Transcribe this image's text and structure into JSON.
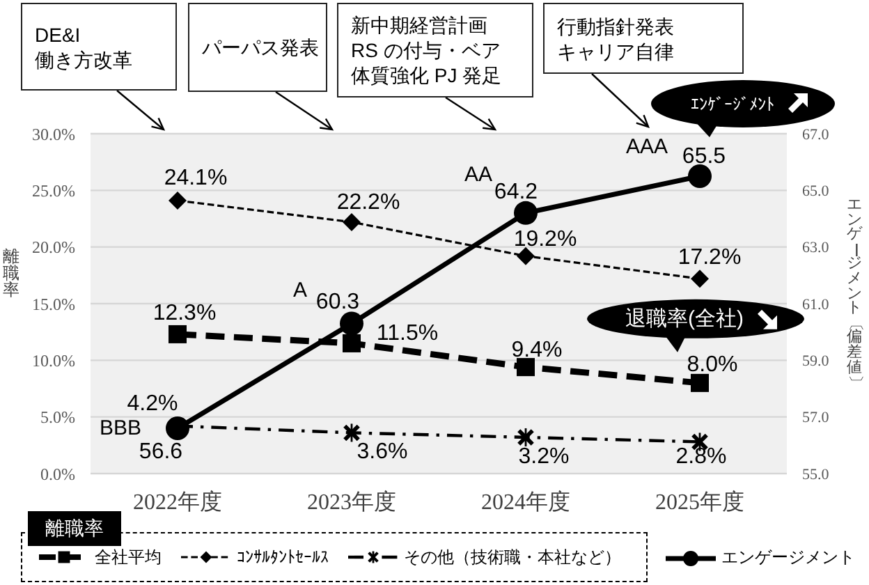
{
  "chart_data": {
    "type": "line",
    "categories": [
      "2022年度",
      "2023年度",
      "2024年度",
      "2025年度"
    ],
    "series": [
      {
        "name": "全社平均",
        "color": "#000000",
        "values": [
          12.3,
          11.5,
          9.4,
          8.0
        ],
        "marker": "square",
        "line_style": "dashed",
        "value_labels": [
          "12.3%",
          "11.5%",
          "9.4%",
          "8.0%"
        ]
      },
      {
        "name": "ｺﾝｻﾙﾀﾝﾄｾｰﾙｽ",
        "color": "#000000",
        "values": [
          24.1,
          22.2,
          19.2,
          17.2
        ],
        "marker": "diamond",
        "line_style": "dashed",
        "value_labels": [
          "24.1%",
          "22.2%",
          "19.2%",
          "17.2%"
        ]
      },
      {
        "name": "その他（技術職・本社など）",
        "color": "#000000",
        "values": [
          4.2,
          3.6,
          3.2,
          2.8
        ],
        "marker": "cross",
        "line_style": "dashdot",
        "value_labels": [
          "4.2%",
          "3.6%",
          "3.2%",
          "2.8%"
        ]
      },
      {
        "name": "エンゲージメント",
        "color": "#000000",
        "values": [
          56.6,
          60.3,
          64.2,
          65.5
        ],
        "axis": "y2",
        "marker": "circle",
        "line_style": "solid",
        "value_labels": [
          "56.6",
          "60.3",
          "64.2",
          "65.5"
        ]
      }
    ],
    "ylabel": "離職率",
    "y2label": "エンゲージメント〔偏差値〕",
    "ylim": [
      0,
      30
    ],
    "yticks": [
      {
        "value": 0,
        "label": "0.0%"
      },
      {
        "value": 5,
        "label": "5.0%"
      },
      {
        "value": 10,
        "label": "10.0%"
      },
      {
        "value": 15,
        "label": "15.0%"
      },
      {
        "value": 20,
        "label": "20.0%"
      },
      {
        "value": 25,
        "label": "25.0%"
      },
      {
        "value": 30,
        "label": "30.0%"
      }
    ],
    "y2lim": [
      55,
      67
    ],
    "y2ticks": [
      {
        "value": 55,
        "label": "55.0"
      },
      {
        "value": 57,
        "label": "57.0"
      },
      {
        "value": 59,
        "label": "59.0"
      },
      {
        "value": 61,
        "label": "61.0"
      },
      {
        "value": 63,
        "label": "63.0"
      },
      {
        "value": 65,
        "label": "65.0"
      },
      {
        "value": 67,
        "label": "67.0"
      }
    ],
    "grid": "y",
    "legend": "bottom",
    "legend_title": "離職率",
    "annotations": [
      "DE&I\n働き方改革",
      "パーパス発表",
      "新中期経営計画RS の付与・ベア体質強化 PJ 発足",
      "行動指針発表キャリア自律",
      "ｴﾝｹﾞｰｼﾞﾒﾝﾄ",
      "BBB",
      "A",
      "AA",
      "AAA",
      "退職率(全社)"
    ]
  }
}
